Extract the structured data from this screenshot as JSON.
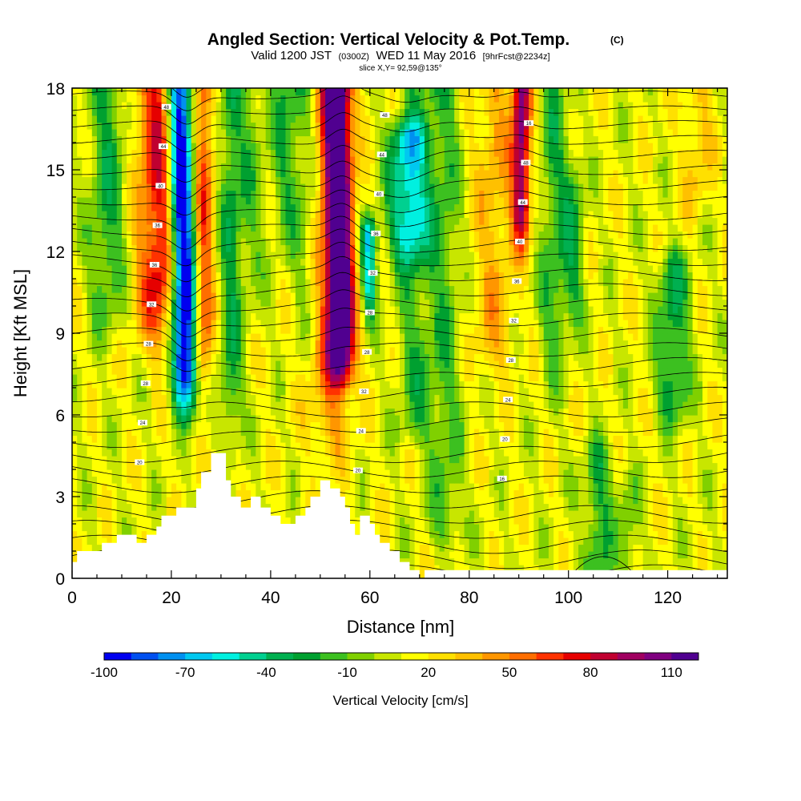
{
  "title": {
    "main": "Angled Section: Vertical Velocity & Pot.Temp.",
    "main_unit": "(C)",
    "valid_prefix": "Valid 1200 JST",
    "valid_utc": "(0300Z)",
    "valid_date": "WED 11 May 2016",
    "forecast": "[9hrFcst@2234z]",
    "slice": "slice X,Y= 92,59@135°"
  },
  "chart_data": {
    "type": "heatmap",
    "xlabel": "Distance [nm]",
    "ylabel": "Height [Kft MSL]",
    "xlim": [
      0,
      132
    ],
    "ylim": [
      0,
      18
    ],
    "x_ticks": [
      0,
      20,
      40,
      60,
      80,
      100,
      120
    ],
    "y_ticks": [
      0,
      3,
      6,
      9,
      12,
      15,
      18
    ],
    "grid": false,
    "fill_variable": "Vertical Velocity [cm/s]",
    "contour_variable": "Pot.Temp. (C)",
    "colorbar": {
      "title": "Vertical Velocity [cm/s]",
      "tick_labels": [
        -100,
        -70,
        -40,
        -10,
        20,
        50,
        80,
        110
      ],
      "range": [
        -100,
        120
      ],
      "step": 10,
      "colors": [
        "#0000f0",
        "#0050f0",
        "#0090f0",
        "#00c8f0",
        "#00f0e0",
        "#00d090",
        "#00b050",
        "#00a030",
        "#3cc020",
        "#80d000",
        "#c8e600",
        "#ffff00",
        "#ffe000",
        "#ffc000",
        "#ff9600",
        "#ff6e00",
        "#ff3200",
        "#e60000",
        "#c00030",
        "#a00060",
        "#800080",
        "#500090"
      ]
    },
    "features": [
      {
        "kind": "downdraft",
        "x_center": 23,
        "height_range": [
          5.2,
          18
        ],
        "peak": -100
      },
      {
        "kind": "updraft",
        "x_center": 18,
        "height_range": [
          7,
          18
        ],
        "peak": 90
      },
      {
        "kind": "updraft",
        "x_center": 54.5,
        "height_range": [
          6.5,
          18
        ],
        "peak": 115
      },
      {
        "kind": "downdraft",
        "x_center": 60,
        "height_range": [
          8.5,
          12.5
        ],
        "peak": -60
      },
      {
        "kind": "downdraft",
        "x_center": 68,
        "height_range": [
          11,
          16
        ],
        "peak": -40
      },
      {
        "kind": "updraft",
        "x_center": 91,
        "height_range": [
          11.5,
          18
        ],
        "peak": 80
      },
      {
        "kind": "downdraft",
        "x_center": 121,
        "height_range": [
          4.5,
          12
        ],
        "peak": -20
      },
      {
        "kind": "downdraft",
        "x_center": 106,
        "height_range": [
          0.5,
          5
        ],
        "peak": -20
      }
    ],
    "terrain_profile": {
      "x": [
        0,
        1,
        1,
        6,
        6,
        9,
        9,
        13,
        13,
        15,
        15,
        17,
        17,
        18,
        18,
        21,
        21,
        25,
        25,
        26,
        26,
        28,
        28,
        31,
        31,
        32,
        32,
        34,
        34,
        36,
        36,
        38,
        38,
        40,
        40,
        42,
        42,
        45,
        45,
        47,
        47,
        48,
        48,
        50,
        50,
        52,
        52,
        54,
        54,
        55,
        55,
        56,
        56,
        57,
        57,
        58,
        58,
        60,
        60,
        61,
        61,
        62,
        62,
        64,
        64,
        66,
        66,
        68,
        68,
        70,
        70,
        71,
        71,
        132
      ],
      "y": [
        0.6,
        0.6,
        1.0,
        1.0,
        1.3,
        1.3,
        1.6,
        1.6,
        1.3,
        1.3,
        1.6,
        1.6,
        1.9,
        1.9,
        2.3,
        2.3,
        2.6,
        2.6,
        3.3,
        3.3,
        3.9,
        3.9,
        4.6,
        4.6,
        3.6,
        3.6,
        3.0,
        3.0,
        2.6,
        2.6,
        3.0,
        3.0,
        2.6,
        2.6,
        2.3,
        2.3,
        2.0,
        2.0,
        2.3,
        2.3,
        2.6,
        2.6,
        3.0,
        3.0,
        3.6,
        3.6,
        3.3,
        3.3,
        3.0,
        3.0,
        2.6,
        2.6,
        2.0,
        2.0,
        1.6,
        1.6,
        2.3,
        2.3,
        2.0,
        2.0,
        1.6,
        1.6,
        1.3,
        1.3,
        1.0,
        1.0,
        0.6,
        0.6,
        0.3,
        0.3,
        0.0,
        0.0,
        0.3,
        0.3
      ]
    },
    "contour_labels": [
      "48",
      "44",
      "40",
      "36",
      "36",
      "32",
      "28",
      "28",
      "24",
      "20",
      "48",
      "44",
      "40",
      "36",
      "32",
      "28",
      "28",
      "32",
      "24",
      "20",
      "16",
      "48",
      "44",
      "40",
      "36",
      "32",
      "28",
      "24",
      "20",
      "16"
    ]
  }
}
